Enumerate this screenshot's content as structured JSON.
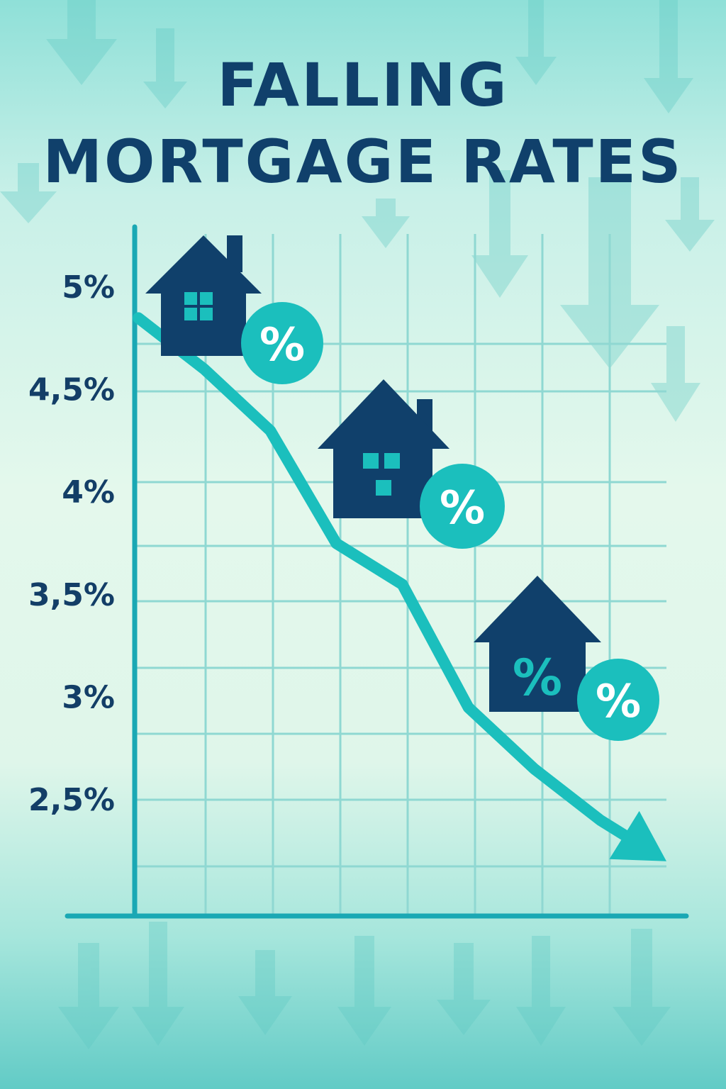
{
  "title_lines": [
    "FALLING",
    "MORTGAGE RATES"
  ],
  "colors": {
    "navy": "#10406b",
    "teal": "#1bbfbd",
    "grid": "#8fd8d2",
    "axis": "#1aa8b4"
  },
  "icons": [
    "house-icon",
    "percent-badge-icon",
    "down-arrow-icon"
  ],
  "badge_text": "%",
  "chart_data": {
    "type": "line",
    "title": "FALLING MORTGAGE RATES",
    "xlabel": "",
    "ylabel": "",
    "y_ticks": [
      "5%",
      "4,5%",
      "4%",
      "3,5%",
      "3%",
      "2,5%"
    ],
    "y_tick_values": [
      5,
      4.5,
      4,
      3.5,
      3,
      2.5
    ],
    "ylim": [
      2.2,
      5.5
    ],
    "x": [
      0,
      1,
      2,
      3,
      4,
      5,
      6,
      7,
      8
    ],
    "series": [
      {
        "values": [
          4.85,
          4.6,
          4.3,
          3.75,
          3.55,
          2.95,
          2.65,
          2.4,
          2.2
        ]
      }
    ],
    "grid": true,
    "legend": "none"
  }
}
